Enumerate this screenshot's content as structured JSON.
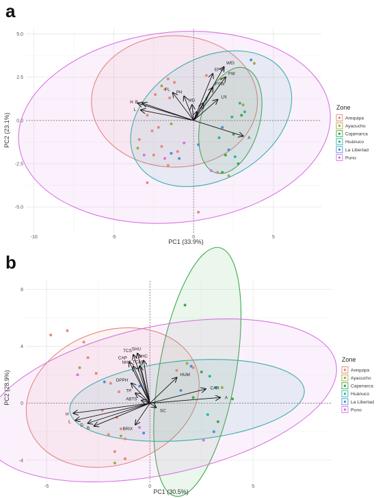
{
  "zone_colors": {
    "Arequipa": "#E5877C",
    "Ayacucho": "#A7A83B",
    "Cajamarca": "#3CA94A",
    "Huánuco": "#2BB5A6",
    "La Libertad": "#4C8FD9",
    "Puno": "#D873E2"
  },
  "chart_data": [
    {
      "type": "scatter",
      "subtype": "pca-biplot",
      "panel_label": "a",
      "xlabel": "PC1 (33.9%)",
      "ylabel": "PC2 (23.1%)",
      "xlim": [
        -10.5,
        8
      ],
      "ylim": [
        -6.5,
        5.3
      ],
      "xticks": [
        -10,
        -5,
        0,
        5
      ],
      "yticks": [
        -5.0,
        -2.5,
        0.0,
        2.5,
        5.0
      ],
      "ytick_labels": [
        "-5.0",
        "-2.5",
        "0.0",
        "2.5",
        "5.0"
      ],
      "grid": true,
      "legend_title": "Zone",
      "legend_position": "right",
      "zones": [
        "Arequipa",
        "Ayacucho",
        "Cajamarca",
        "Huánuco",
        "La Libertad",
        "Puno"
      ],
      "loadings": [
        {
          "label": "WEI",
          "x": 1.9,
          "y": 3.1
        },
        {
          "label": "EFW",
          "x": 1.2,
          "y": 2.7
        },
        {
          "label": "FW",
          "x": 2.0,
          "y": 2.5
        },
        {
          "label": "FSW",
          "x": 1.2,
          "y": 1.9
        },
        {
          "label": "T",
          "x": 0.6,
          "y": 1.0
        },
        {
          "label": "LN",
          "x": 1.5,
          "y": 1.2
        },
        {
          "label": "FL",
          "x": -1.3,
          "y": 1.6
        },
        {
          "label": "PH",
          "x": -0.6,
          "y": 1.4
        },
        {
          "label": "MD",
          "x": -0.1,
          "y": 0.9
        },
        {
          "label": "FB",
          "x": 0.2,
          "y": 0.5
        },
        {
          "label": "H",
          "x": -3.5,
          "y": 1.0
        },
        {
          "label": "B",
          "x": -3.2,
          "y": 1.0
        },
        {
          "label": "L",
          "x": -3.3,
          "y": 0.6
        },
        {
          "label": "A",
          "x": 3.1,
          "y": -0.9
        }
      ],
      "ellipses": [
        {
          "zone": "Arequipa",
          "cx": -1.2,
          "cy": 1.1,
          "rx": 5.2,
          "ry": 3.8,
          "angle": 0
        },
        {
          "zone": "Huánuco",
          "cx": 1.1,
          "cy": 0.1,
          "rx": 5.4,
          "ry": 3.5,
          "angle": 30
        },
        {
          "zone": "Cajamarca",
          "cx": 2.3,
          "cy": 0.0,
          "rx": 3.4,
          "ry": 1.7,
          "angle": 75
        },
        {
          "zone": "Puno",
          "cx": -1.2,
          "cy": -0.4,
          "rx": 9.8,
          "ry": 5.5,
          "angle": 6
        }
      ],
      "points": [
        {
          "zone": "Arequipa",
          "x": -1.6,
          "y": 2.4
        },
        {
          "zone": "Arequipa",
          "x": -1.2,
          "y": 2.2
        },
        {
          "zone": "Arequipa",
          "x": -1.8,
          "y": 1.8
        },
        {
          "zone": "Arequipa",
          "x": -2.4,
          "y": 1.5
        },
        {
          "zone": "Arequipa",
          "x": -1.5,
          "y": 1.3
        },
        {
          "zone": "Arequipa",
          "x": -2.9,
          "y": 0.3
        },
        {
          "zone": "Arequipa",
          "x": -2.6,
          "y": -0.6
        },
        {
          "zone": "Arequipa",
          "x": -2.2,
          "y": -0.4
        },
        {
          "zone": "Arequipa",
          "x": -3.4,
          "y": -1.1
        },
        {
          "zone": "Arequipa",
          "x": -2.0,
          "y": -1.5
        },
        {
          "zone": "Arequipa",
          "x": -2.5,
          "y": -2.0
        },
        {
          "zone": "Arequipa",
          "x": -1.0,
          "y": -1.8
        },
        {
          "zone": "Arequipa",
          "x": -1.6,
          "y": -2.6
        },
        {
          "zone": "Arequipa",
          "x": -2.9,
          "y": -3.6
        },
        {
          "zone": "Arequipa",
          "x": 0.3,
          "y": -5.3
        },
        {
          "zone": "Arequipa",
          "x": 1.5,
          "y": -3.0
        },
        {
          "zone": "Arequipa",
          "x": 0.8,
          "y": 2.6
        },
        {
          "zone": "Ayacucho",
          "x": -2.0,
          "y": 2.0
        },
        {
          "zone": "Ayacucho",
          "x": -1.4,
          "y": -0.2
        },
        {
          "zone": "Ayacucho",
          "x": -3.5,
          "y": -1.6
        },
        {
          "zone": "Ayacucho",
          "x": 2.2,
          "y": -3.2
        },
        {
          "zone": "Ayacucho",
          "x": 3.1,
          "y": 0.9
        },
        {
          "zone": "Ayacucho",
          "x": 3.8,
          "y": 3.3
        },
        {
          "zone": "Ayacucho",
          "x": 1.7,
          "y": 2.4
        },
        {
          "zone": "Cajamarca",
          "x": 2.0,
          "y": -2.0
        },
        {
          "zone": "Cajamarca",
          "x": 2.8,
          "y": -2.5
        },
        {
          "zone": "Cajamarca",
          "x": 1.8,
          "y": -3.0
        },
        {
          "zone": "Cajamarca",
          "x": 2.5,
          "y": -0.8
        },
        {
          "zone": "Cajamarca",
          "x": 3.0,
          "y": 0.3
        },
        {
          "zone": "Huánuco",
          "x": 2.9,
          "y": 1.0
        },
        {
          "zone": "Huánuco",
          "x": 3.2,
          "y": 0.5
        },
        {
          "zone": "Huánuco",
          "x": 2.4,
          "y": 0.2
        },
        {
          "zone": "Huánuco",
          "x": 1.6,
          "y": -1.0
        },
        {
          "zone": "Huánuco",
          "x": 2.6,
          "y": -2.1
        },
        {
          "zone": "La Libertad",
          "x": -0.9,
          "y": -2.2
        },
        {
          "zone": "La Libertad",
          "x": -1.4,
          "y": -1.9
        },
        {
          "zone": "La Libertad",
          "x": 0.3,
          "y": -1.4
        },
        {
          "zone": "La Libertad",
          "x": 3.6,
          "y": 3.5
        },
        {
          "zone": "La Libertad",
          "x": 2.2,
          "y": -1.7
        },
        {
          "zone": "La Libertad",
          "x": 1.8,
          "y": -0.4
        },
        {
          "zone": "Puno",
          "x": -3.1,
          "y": -2.0
        },
        {
          "zone": "Puno",
          "x": -1.8,
          "y": -2.2
        },
        {
          "zone": "Puno",
          "x": -0.6,
          "y": -1.3
        },
        {
          "zone": "Puno",
          "x": 1.1,
          "y": -2.9
        }
      ]
    },
    {
      "type": "scatter",
      "subtype": "pca-biplot",
      "panel_label": "b",
      "xlabel": "PC1 (30.5%)",
      "ylabel": "PC2 (28.9%)",
      "xlim": [
        -6,
        8.8
      ],
      "ylim": [
        -5.6,
        8.6
      ],
      "xticks": [
        -5,
        0,
        5
      ],
      "yticks": [
        -4,
        0,
        4,
        8
      ],
      "ytick_labels": [
        "-4",
        "0",
        "4",
        "8"
      ],
      "grid": true,
      "legend_title": "Zone",
      "legend_position": "right",
      "zones": [
        "Arequipa",
        "Ayacucho",
        "Cajamarca",
        "Huánuco",
        "La Libertad",
        "Puno"
      ],
      "loadings": [
        {
          "label": "TCS",
          "x": -0.8,
          "y": 3.4
        },
        {
          "label": "SHU",
          "x": -0.6,
          "y": 3.5
        },
        {
          "label": "CAP",
          "x": -1.0,
          "y": 2.9
        },
        {
          "label": "DHC",
          "x": -0.3,
          "y": 3.0
        },
        {
          "label": "NHC",
          "x": -0.8,
          "y": 2.6
        },
        {
          "label": "TCAP",
          "x": -0.5,
          "y": 2.6
        },
        {
          "label": "DPPH",
          "x": -0.9,
          "y": 1.4
        },
        {
          "label": "TP",
          "x": -0.7,
          "y": 0.7
        },
        {
          "label": "ABTS",
          "x": -0.4,
          "y": 0.2
        },
        {
          "label": "HUM",
          "x": 1.3,
          "y": 1.8
        },
        {
          "label": "CAR",
          "x": 2.7,
          "y": 1.0
        },
        {
          "label": "A",
          "x": 3.4,
          "y": 0.4
        },
        {
          "label": "SC",
          "x": 0.3,
          "y": -0.3
        },
        {
          "label": "BRIX",
          "x": -0.7,
          "y": -1.5
        },
        {
          "label": "H",
          "x": -3.7,
          "y": -0.7
        },
        {
          "label": "L",
          "x": -3.6,
          "y": -1.2
        },
        {
          "label": "D",
          "x": -3.0,
          "y": -1.4
        },
        {
          "label": "B",
          "x": -2.7,
          "y": -1.6
        }
      ],
      "ellipses": [
        {
          "zone": "Arequipa",
          "cx": -1.8,
          "cy": 0.4,
          "rx": 4.3,
          "ry": 4.7,
          "angle": 20
        },
        {
          "zone": "Huánuco",
          "cx": 1.8,
          "cy": 0.2,
          "rx": 5.7,
          "ry": 2.8,
          "angle": 5
        },
        {
          "zone": "Cajamarca",
          "cx": 2.3,
          "cy": 2.2,
          "rx": 6.1,
          "ry": 2.7,
          "angle": 80
        },
        {
          "zone": "Puno",
          "cx": 0.5,
          "cy": 0.2,
          "rx": 8.7,
          "ry": 5.2,
          "angle": 12
        }
      ],
      "points": [
        {
          "zone": "Arequipa",
          "x": -4.8,
          "y": 4.8
        },
        {
          "zone": "Arequipa",
          "x": -4.0,
          "y": 5.1
        },
        {
          "zone": "Arequipa",
          "x": -3.2,
          "y": 4.3
        },
        {
          "zone": "Arequipa",
          "x": -3.0,
          "y": 3.2
        },
        {
          "zone": "Arequipa",
          "x": -2.6,
          "y": 2.1
        },
        {
          "zone": "Arequipa",
          "x": -1.9,
          "y": 1.4
        },
        {
          "zone": "Arequipa",
          "x": -1.5,
          "y": 0.8
        },
        {
          "zone": "Arequipa",
          "x": -2.3,
          "y": -0.5
        },
        {
          "zone": "Arequipa",
          "x": -1.6,
          "y": -1.0
        },
        {
          "zone": "Arequipa",
          "x": -1.4,
          "y": -1.8
        },
        {
          "zone": "Arequipa",
          "x": -2.0,
          "y": -2.2
        },
        {
          "zone": "Arequipa",
          "x": -1.2,
          "y": -2.5
        },
        {
          "zone": "Arequipa",
          "x": -1.7,
          "y": -3.4
        },
        {
          "zone": "Arequipa",
          "x": -1.2,
          "y": -3.9
        },
        {
          "zone": "Arequipa",
          "x": 1.3,
          "y": 2.3
        },
        {
          "zone": "Arequipa",
          "x": 2.1,
          "y": 2.5
        },
        {
          "zone": "Ayacucho",
          "x": -3.4,
          "y": 2.5
        },
        {
          "zone": "Ayacucho",
          "x": -1.4,
          "y": -2.3
        },
        {
          "zone": "Ayacucho",
          "x": -1.7,
          "y": -4.2
        },
        {
          "zone": "Ayacucho",
          "x": 1.8,
          "y": 2.8
        },
        {
          "zone": "Ayacucho",
          "x": 3.5,
          "y": 1.1
        },
        {
          "zone": "Cajamarca",
          "x": 1.7,
          "y": 6.9
        },
        {
          "zone": "Cajamarca",
          "x": 2.5,
          "y": 2.2
        },
        {
          "zone": "Cajamarca",
          "x": 2.1,
          "y": 0.4
        },
        {
          "zone": "Cajamarca",
          "x": 3.3,
          "y": -1.3
        },
        {
          "zone": "Cajamarca",
          "x": 4.0,
          "y": 0.3
        },
        {
          "zone": "Huánuco",
          "x": 2.9,
          "y": 1.9
        },
        {
          "zone": "Huánuco",
          "x": 2.8,
          "y": -0.8
        },
        {
          "zone": "Huánuco",
          "x": 3.2,
          "y": 1.1
        },
        {
          "zone": "La Libertad",
          "x": -2.2,
          "y": 1.5
        },
        {
          "zone": "La Libertad",
          "x": -0.5,
          "y": 1.2
        },
        {
          "zone": "La Libertad",
          "x": -0.3,
          "y": -2.1
        },
        {
          "zone": "La Libertad",
          "x": 2.0,
          "y": 2.6
        },
        {
          "zone": "La Libertad",
          "x": 1.5,
          "y": 0.9
        },
        {
          "zone": "La Libertad",
          "x": 3.1,
          "y": -2.0
        },
        {
          "zone": "Puno",
          "x": -3.5,
          "y": 2.0
        },
        {
          "zone": "Puno",
          "x": -0.5,
          "y": -1.7
        },
        {
          "zone": "Puno",
          "x": 2.6,
          "y": -2.6
        }
      ]
    }
  ]
}
